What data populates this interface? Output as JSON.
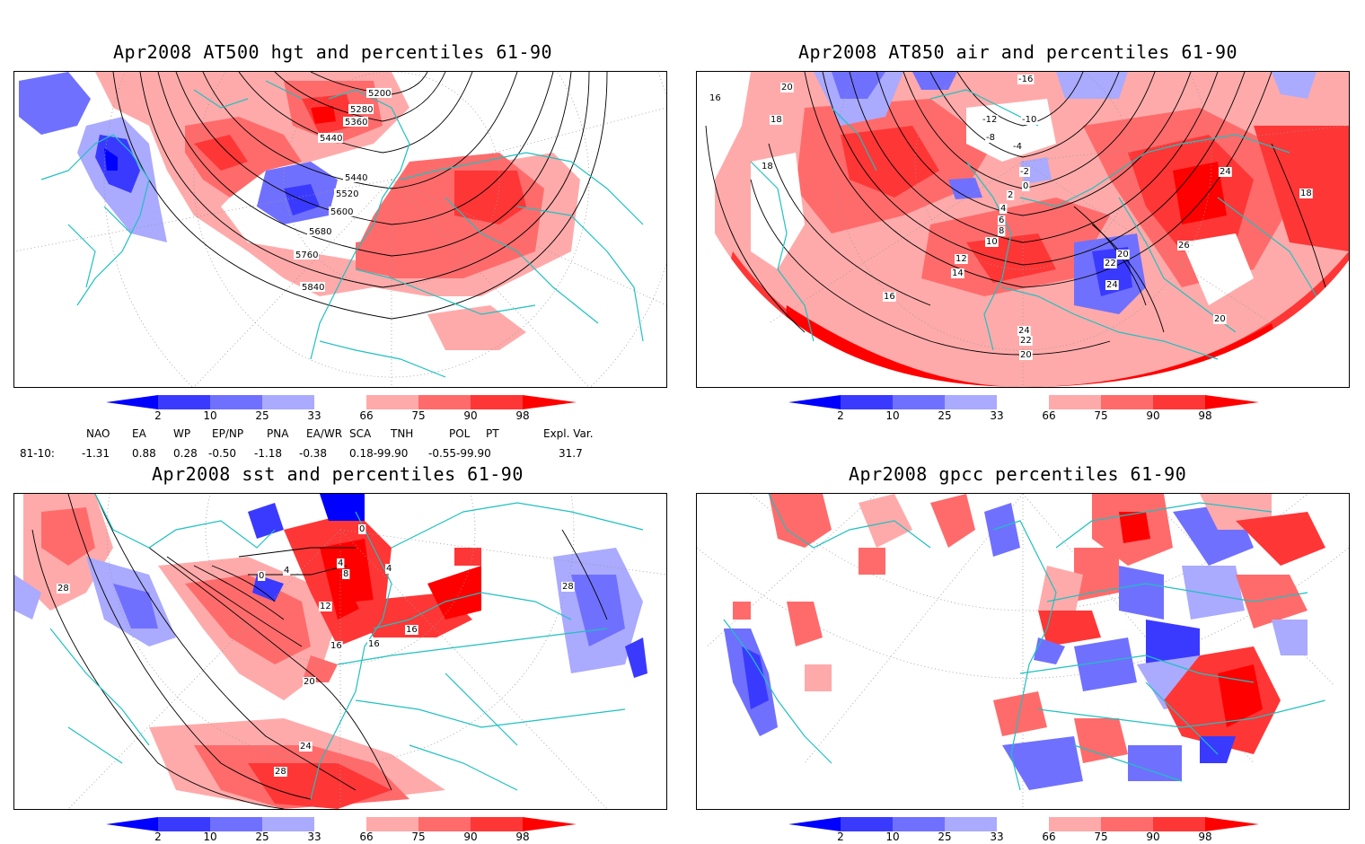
{
  "panels": {
    "tl": {
      "title": "Apr2008 AT500 hgt and percentiles 61-90",
      "contour_labels": [
        "5200",
        "5280",
        "5360",
        "5440",
        "5440",
        "5520",
        "5600",
        "5680",
        "5760",
        "5840"
      ]
    },
    "tr": {
      "title": "Apr2008 AT850 air and percentiles 61-90",
      "contour_labels": [
        "-16",
        "-12",
        "-10",
        "-8",
        "-4",
        "-2",
        "0",
        "2",
        "4",
        "6",
        "8",
        "10",
        "12",
        "14",
        "16",
        "18",
        "18",
        "20",
        "20",
        "20",
        "22",
        "22",
        "24",
        "24",
        "24",
        "26",
        "18",
        "16",
        "20"
      ]
    },
    "bl": {
      "title": "Apr2008 sst and percentiles 61-90",
      "contour_labels": [
        "0",
        "4",
        "4",
        "8",
        "4",
        "0",
        "12",
        "16",
        "16",
        "16",
        "20",
        "24",
        "28",
        "28",
        "28"
      ]
    },
    "br": {
      "title": "Apr2008 gpcc percentiles 61-90"
    }
  },
  "colorbar": {
    "labels": [
      "2",
      "10",
      "25",
      "33",
      "66",
      "75",
      "90",
      "98"
    ],
    "colors": [
      "#0000ff",
      "#3a3aff",
      "#7070ff",
      "#aaaaff",
      "#ffffff",
      "#ffaaaa",
      "#ff6b6b",
      "#ff3636",
      "#ff0000"
    ]
  },
  "indices": {
    "headers": [
      "NAO",
      "EA",
      "WP",
      "EP/NP",
      "PNA",
      "EA/WR",
      "SCA",
      "TNH",
      "POL",
      "PT",
      "Expl. Var."
    ],
    "row_label": "81-10:",
    "values": [
      "-1.31",
      "0.88",
      "0.28",
      "-0.50",
      "-1.18",
      "-0.38",
      "0.18-99.90",
      "-0.55-99.90",
      "31.7"
    ]
  },
  "colors": {
    "coast": "#20c0c0",
    "pos": "#ff0000",
    "neg": "#0000ff",
    "contour": "#000000"
  }
}
